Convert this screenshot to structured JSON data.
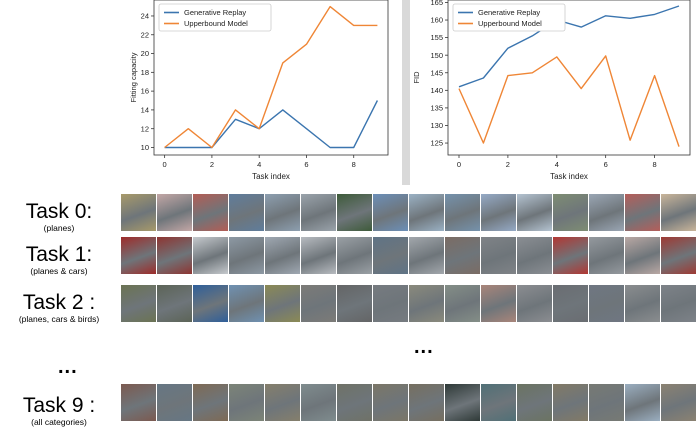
{
  "chart_data": [
    {
      "type": "line",
      "title": "",
      "xlabel": "Task index",
      "ylabel": "Fitting capacity",
      "x": [
        0,
        1,
        2,
        3,
        4,
        5,
        6,
        7,
        8,
        9
      ],
      "xlim": [
        -0.45,
        9.45
      ],
      "ylim": [
        9.2,
        25.7
      ],
      "xticks": [
        "0",
        "2",
        "4",
        "6",
        "8"
      ],
      "yticks": [
        "10",
        "12",
        "14",
        "16",
        "18",
        "20",
        "22",
        "24"
      ],
      "grid": false,
      "legend": "top-left",
      "series": [
        {
          "name": "Generative Replay",
          "color": "#3b75af",
          "values": [
            10,
            10,
            10,
            13,
            12,
            14,
            12,
            10,
            10,
            15
          ]
        },
        {
          "name": "Upperbound Model",
          "color": "#ef8636",
          "values": [
            10,
            12,
            10,
            14,
            12,
            19,
            21,
            25,
            23,
            23
          ]
        }
      ]
    },
    {
      "type": "line",
      "title": "",
      "xlabel": "Task index",
      "ylabel": "FID",
      "x": [
        0,
        1,
        2,
        3,
        4,
        5,
        6,
        7,
        8,
        9
      ],
      "xlim": [
        -0.45,
        9.45
      ],
      "ylim": [
        121.6,
        165.7
      ],
      "xticks": [
        "0",
        "2",
        "4",
        "6",
        "8"
      ],
      "yticks": [
        "125",
        "130",
        "135",
        "140",
        "145",
        "150",
        "155",
        "160",
        "165"
      ],
      "grid": false,
      "legend": "top-left",
      "series": [
        {
          "name": "Generative Replay",
          "color": "#3b75af",
          "values": [
            141,
            143.5,
            152,
            155.5,
            160,
            158,
            161.2,
            160.5,
            161.6,
            164
          ]
        },
        {
          "name": "Upperbound Model",
          "color": "#ef8636",
          "values": [
            140.5,
            125,
            144.2,
            145,
            149.5,
            140.5,
            149.8,
            125.8,
            144.2,
            124
          ]
        }
      ]
    }
  ],
  "tasks": [
    {
      "title": "Task 0:",
      "subtitle": "(planes)"
    },
    {
      "title": "Task 1:",
      "subtitle": "(planes & cars)"
    },
    {
      "title": "Task 2 :",
      "subtitle": "(planes, cars & birds)"
    },
    {
      "title": "Task 9 :",
      "subtitle": "(all categories)"
    }
  ],
  "ellipsis": "...",
  "thumbnails": [
    [
      "#a89a6a",
      "#c3a7a6",
      "#b35d55",
      "#5f7d9c",
      "#8d9fb0",
      "#9aa3ab",
      "#3e5b3a",
      "#6c8fb8",
      "#9ab1c4",
      "#7592ac",
      "#95aac6",
      "#b4c3d1",
      "#7e8d73",
      "#9aa6b4",
      "#b55e5a",
      "#c9b59a"
    ],
    [
      "#9e2c2a",
      "#8e3532",
      "#c5c9cd",
      "#8d99a4",
      "#9fa8b2",
      "#b7bbc0",
      "#9aa0a5",
      "#5f7486",
      "#a2a7ac",
      "#7b6c64",
      "#7f8387",
      "#8a8e93",
      "#b23733",
      "#94999e",
      "#b9a8a4",
      "#9e3a34"
    ],
    [
      "#6b7353",
      "#5c6457",
      "#2f5f9a",
      "#6f91b2",
      "#8b8a55",
      "#7c7b78",
      "#646566",
      "#767b80",
      "#8a8a7c",
      "#848e87",
      "#a9857a",
      "#8b8d91",
      "#6a6d72",
      "#6f7682",
      "#8a8d8f",
      "#7d8288"
    ],
    [
      "#7c5a50",
      "#667784",
      "#7e6a55",
      "#7c8478",
      "#857f6c",
      "#7f8c8e",
      "#6f7267",
      "#7b7667",
      "#766f60",
      "#2f3a38",
      "#507077",
      "#6b7462",
      "#827a66",
      "#777a74",
      "#9aaec0",
      "#8b8272"
    ]
  ]
}
